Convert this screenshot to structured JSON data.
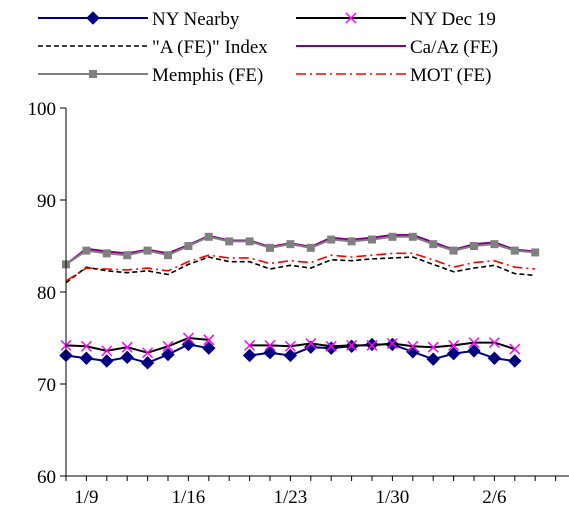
{
  "chart_data": {
    "type": "line",
    "title": "",
    "xlabel": "",
    "ylabel": "",
    "ylim": [
      60,
      100
    ],
    "yticks": [
      "60",
      "70",
      "80",
      "90",
      "100"
    ],
    "xticks": [
      "1/9",
      "1/16",
      "1/23",
      "1/30",
      "2/6"
    ],
    "grid": false,
    "legend_position": "top",
    "x": [
      0,
      1,
      2,
      3,
      4,
      5,
      6,
      7,
      8,
      9,
      10,
      11,
      12,
      13,
      14,
      15,
      16,
      17,
      18,
      19,
      20,
      21,
      22,
      23
    ],
    "series": [
      {
        "name": "NY Nearby",
        "color": "#000080",
        "marker": "diamond",
        "style": "solid",
        "values": [
          73.1,
          72.8,
          72.5,
          72.9,
          72.3,
          73.2,
          74.3,
          73.9,
          null,
          73.1,
          73.4,
          73.1,
          74.0,
          73.9,
          74.1,
          74.3,
          74.3,
          73.5,
          72.7,
          73.3,
          73.6,
          72.8,
          72.5,
          null
        ]
      },
      {
        "name": "NY Dec 19",
        "color": "#000000",
        "marker": "x",
        "markerColor": "#ff00ff",
        "style": "solid",
        "values": [
          74.2,
          74.1,
          73.6,
          74.0,
          73.4,
          74.1,
          75.0,
          74.8,
          null,
          74.2,
          74.2,
          74.1,
          74.4,
          74.1,
          74.2,
          74.2,
          74.4,
          74.1,
          74.0,
          74.2,
          74.5,
          74.5,
          73.8,
          null
        ]
      },
      {
        "name": "\"A (FE)\" Index",
        "color": "#000000",
        "marker": "none",
        "style": "dashed",
        "values": [
          81.0,
          82.7,
          82.3,
          82.1,
          82.3,
          81.9,
          83.0,
          83.8,
          83.3,
          83.3,
          82.5,
          82.9,
          82.6,
          83.5,
          83.4,
          83.6,
          83.7,
          83.8,
          83.0,
          82.2,
          82.6,
          82.9,
          82.0,
          81.8
        ]
      },
      {
        "name": "Ca/Az (FE)",
        "color": "#800080",
        "marker": "none",
        "style": "solid",
        "values": [
          83.0,
          84.7,
          84.4,
          84.2,
          84.6,
          84.2,
          85.1,
          86.1,
          85.6,
          85.6,
          84.9,
          85.3,
          84.9,
          85.9,
          85.7,
          85.9,
          86.2,
          86.2,
          85.4,
          84.6,
          85.2,
          85.4,
          84.6,
          84.4
        ]
      },
      {
        "name": "Memphis (FE)",
        "color": "#808080",
        "marker": "square",
        "style": "solid",
        "values": [
          83.0,
          84.5,
          84.2,
          84.0,
          84.5,
          84.0,
          85.0,
          86.0,
          85.5,
          85.5,
          84.8,
          85.2,
          84.8,
          85.7,
          85.5,
          85.7,
          86.0,
          86.0,
          85.2,
          84.5,
          85.0,
          85.2,
          84.5,
          84.3
        ]
      },
      {
        "name": "MOT (FE)",
        "color": "#ff0000",
        "marker": "none",
        "style": "dashdot",
        "values": [
          81.2,
          82.6,
          82.5,
          82.4,
          82.6,
          82.3,
          83.3,
          84.0,
          83.7,
          83.7,
          83.1,
          83.4,
          83.2,
          84.0,
          83.8,
          84.0,
          84.2,
          84.2,
          83.5,
          82.7,
          83.2,
          83.4,
          82.7,
          82.5
        ]
      }
    ]
  }
}
